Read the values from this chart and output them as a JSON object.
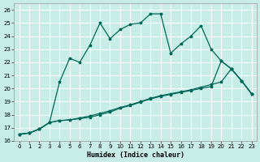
{
  "xlabel": "Humidex (Indice chaleur)",
  "bg_color": "#c8ede6",
  "grid_color": "#b0ddd6",
  "line_color": "#006858",
  "xlim": [
    -0.5,
    23.5
  ],
  "ylim": [
    16,
    26.5
  ],
  "xticks": [
    0,
    1,
    2,
    3,
    4,
    5,
    6,
    7,
    8,
    9,
    10,
    11,
    12,
    13,
    14,
    15,
    16,
    17,
    18,
    19,
    20,
    21,
    22,
    23
  ],
  "yticks": [
    16,
    17,
    18,
    19,
    20,
    21,
    22,
    23,
    24,
    25,
    26
  ],
  "line1_x": [
    0,
    1,
    2,
    3,
    4,
    5,
    6,
    7,
    8,
    9,
    10,
    11,
    12,
    13,
    14,
    15,
    16,
    17,
    18,
    19,
    20,
    21,
    22,
    23
  ],
  "line1_y": [
    16.5,
    16.6,
    16.9,
    17.4,
    20.5,
    22.3,
    22.0,
    23.3,
    25.0,
    23.8,
    24.5,
    24.9,
    25.0,
    25.7,
    25.7,
    22.7,
    23.4,
    24.0,
    24.8,
    23.0,
    22.1,
    21.5,
    20.6,
    19.6
  ],
  "line2_x": [
    0,
    1,
    2,
    3,
    4,
    5,
    6,
    7,
    8,
    9,
    10,
    11,
    12,
    13,
    14,
    15,
    16,
    17,
    18,
    19,
    20,
    21,
    22,
    23
  ],
  "line2_y": [
    16.5,
    16.6,
    16.9,
    17.4,
    17.55,
    17.6,
    17.7,
    17.8,
    18.0,
    18.2,
    18.5,
    18.7,
    18.95,
    19.2,
    19.4,
    19.55,
    19.7,
    19.85,
    20.0,
    20.15,
    22.1,
    21.5,
    20.6,
    19.6
  ],
  "line3_x": [
    0,
    1,
    2,
    3,
    4,
    5,
    6,
    7,
    8,
    9,
    10,
    11,
    12,
    13,
    14,
    15,
    16,
    17,
    18,
    19,
    20,
    21,
    22,
    23
  ],
  "line3_y": [
    16.5,
    16.6,
    16.9,
    17.4,
    17.55,
    17.6,
    17.75,
    17.9,
    18.1,
    18.3,
    18.55,
    18.75,
    19.0,
    19.25,
    19.45,
    19.6,
    19.75,
    19.9,
    20.1,
    20.3,
    20.5,
    21.5,
    20.6,
    19.6
  ]
}
